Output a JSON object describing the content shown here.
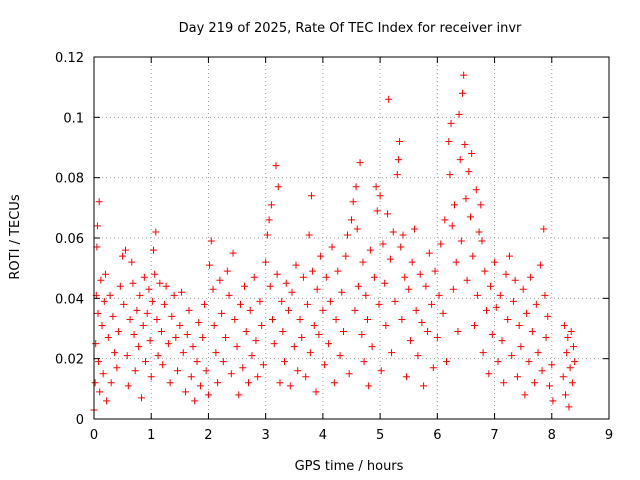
{
  "chart_data": {
    "type": "scatter",
    "title": "Day 219 of 2025, Rate Of TEC Index for receiver invr",
    "xlabel": "GPS time / hours",
    "ylabel": "ROTI / TECUs",
    "xlim": [
      0,
      9
    ],
    "ylim": [
      0,
      0.12
    ],
    "xticks": [
      0,
      1,
      2,
      3,
      4,
      5,
      6,
      7,
      8,
      9
    ],
    "xtick_labels": [
      "0",
      "1",
      "2",
      "3",
      "4",
      "5",
      "6",
      "7",
      "8",
      "9"
    ],
    "yticks": [
      0,
      0.02,
      0.04,
      0.06,
      0.08,
      0.1,
      0.12
    ],
    "ytick_labels": [
      "0",
      "0.02",
      "0.04",
      "0.06",
      "0.08",
      "0.1",
      "0.12"
    ],
    "grid": true,
    "marker": "plus",
    "color": "#ff0000",
    "series": [
      {
        "name": "ROTI",
        "points": [
          [
            0.0,
            0.003
          ],
          [
            0.02,
            0.012
          ],
          [
            0.03,
            0.025
          ],
          [
            0.04,
            0.041
          ],
          [
            0.05,
            0.057
          ],
          [
            0.06,
            0.064
          ],
          [
            0.07,
            0.035
          ],
          [
            0.08,
            0.019
          ],
          [
            0.09,
            0.072
          ],
          [
            0.1,
            0.009
          ],
          [
            0.12,
            0.046
          ],
          [
            0.14,
            0.031
          ],
          [
            0.16,
            0.015
          ],
          [
            0.18,
            0.039
          ],
          [
            0.2,
            0.048
          ],
          [
            0.22,
            0.006
          ],
          [
            0.25,
            0.027
          ],
          [
            0.28,
            0.041
          ],
          [
            0.3,
            0.012
          ],
          [
            0.33,
            0.034
          ],
          [
            0.36,
            0.022
          ],
          [
            0.4,
            0.017
          ],
          [
            0.43,
            0.029
          ],
          [
            0.46,
            0.044
          ],
          [
            0.5,
            0.054
          ],
          [
            0.52,
            0.038
          ],
          [
            0.55,
            0.056
          ],
          [
            0.58,
            0.021
          ],
          [
            0.6,
            0.011
          ],
          [
            0.63,
            0.033
          ],
          [
            0.66,
            0.052
          ],
          [
            0.68,
            0.045
          ],
          [
            0.7,
            0.028
          ],
          [
            0.72,
            0.016
          ],
          [
            0.75,
            0.036
          ],
          [
            0.78,
            0.024
          ],
          [
            0.8,
            0.041
          ],
          [
            0.83,
            0.007
          ],
          [
            0.86,
            0.031
          ],
          [
            0.88,
            0.047
          ],
          [
            0.9,
            0.019
          ],
          [
            0.93,
            0.035
          ],
          [
            0.96,
            0.043
          ],
          [
            0.98,
            0.026
          ],
          [
            1.0,
            0.014
          ],
          [
            1.02,
            0.039
          ],
          [
            1.04,
            0.056
          ],
          [
            1.06,
            0.048
          ],
          [
            1.08,
            0.062
          ],
          [
            1.1,
            0.033
          ],
          [
            1.12,
            0.021
          ],
          [
            1.15,
            0.045
          ],
          [
            1.18,
            0.029
          ],
          [
            1.2,
            0.018
          ],
          [
            1.23,
            0.038
          ],
          [
            1.26,
            0.044
          ],
          [
            1.3,
            0.025
          ],
          [
            1.33,
            0.012
          ],
          [
            1.36,
            0.034
          ],
          [
            1.4,
            0.041
          ],
          [
            1.43,
            0.027
          ],
          [
            1.46,
            0.016
          ],
          [
            1.5,
            0.031
          ],
          [
            1.53,
            0.042
          ],
          [
            1.56,
            0.022
          ],
          [
            1.6,
            0.009
          ],
          [
            1.63,
            0.028
          ],
          [
            1.66,
            0.036
          ],
          [
            1.7,
            0.014
          ],
          [
            1.73,
            0.024
          ],
          [
            1.76,
            0.006
          ],
          [
            1.8,
            0.019
          ],
          [
            1.83,
            0.032
          ],
          [
            1.86,
            0.011
          ],
          [
            1.9,
            0.027
          ],
          [
            1.93,
            0.038
          ],
          [
            1.96,
            0.016
          ],
          [
            2.0,
            0.008
          ],
          [
            2.02,
            0.051
          ],
          [
            2.05,
            0.059
          ],
          [
            2.08,
            0.043
          ],
          [
            2.1,
            0.031
          ],
          [
            2.13,
            0.022
          ],
          [
            2.16,
            0.012
          ],
          [
            2.2,
            0.046
          ],
          [
            2.23,
            0.035
          ],
          [
            2.26,
            0.019
          ],
          [
            2.3,
            0.027
          ],
          [
            2.33,
            0.049
          ],
          [
            2.36,
            0.041
          ],
          [
            2.4,
            0.015
          ],
          [
            2.43,
            0.055
          ],
          [
            2.46,
            0.033
          ],
          [
            2.5,
            0.024
          ],
          [
            2.53,
            0.008
          ],
          [
            2.56,
            0.038
          ],
          [
            2.6,
            0.017
          ],
          [
            2.63,
            0.044
          ],
          [
            2.66,
            0.029
          ],
          [
            2.7,
            0.012
          ],
          [
            2.73,
            0.036
          ],
          [
            2.76,
            0.021
          ],
          [
            2.8,
            0.047
          ],
          [
            2.83,
            0.026
          ],
          [
            2.86,
            0.014
          ],
          [
            2.9,
            0.039
          ],
          [
            2.93,
            0.031
          ],
          [
            2.96,
            0.018
          ],
          [
            3.0,
            0.052
          ],
          [
            3.03,
            0.061
          ],
          [
            3.06,
            0.066
          ],
          [
            3.08,
            0.044
          ],
          [
            3.1,
            0.071
          ],
          [
            3.12,
            0.033
          ],
          [
            3.15,
            0.025
          ],
          [
            3.18,
            0.084
          ],
          [
            3.2,
            0.048
          ],
          [
            3.22,
            0.077
          ],
          [
            3.25,
            0.012
          ],
          [
            3.28,
            0.039
          ],
          [
            3.3,
            0.029
          ],
          [
            3.33,
            0.019
          ],
          [
            3.36,
            0.045
          ],
          [
            3.4,
            0.036
          ],
          [
            3.43,
            0.011
          ],
          [
            3.46,
            0.042
          ],
          [
            3.5,
            0.024
          ],
          [
            3.53,
            0.051
          ],
          [
            3.56,
            0.016
          ],
          [
            3.6,
            0.033
          ],
          [
            3.63,
            0.027
          ],
          [
            3.66,
            0.047
          ],
          [
            3.7,
            0.014
          ],
          [
            3.73,
            0.038
          ],
          [
            3.76,
            0.061
          ],
          [
            3.78,
            0.022
          ],
          [
            3.8,
            0.074
          ],
          [
            3.82,
            0.049
          ],
          [
            3.85,
            0.031
          ],
          [
            3.88,
            0.009
          ],
          [
            3.9,
            0.043
          ],
          [
            3.93,
            0.028
          ],
          [
            3.96,
            0.054
          ],
          [
            4.0,
            0.036
          ],
          [
            4.03,
            0.018
          ],
          [
            4.06,
            0.047
          ],
          [
            4.1,
            0.025
          ],
          [
            4.13,
            0.039
          ],
          [
            4.16,
            0.057
          ],
          [
            4.2,
            0.012
          ],
          [
            4.23,
            0.033
          ],
          [
            4.26,
            0.049
          ],
          [
            4.3,
            0.021
          ],
          [
            4.33,
            0.042
          ],
          [
            4.36,
            0.029
          ],
          [
            4.4,
            0.054
          ],
          [
            4.43,
            0.061
          ],
          [
            4.46,
            0.015
          ],
          [
            4.5,
            0.066
          ],
          [
            4.53,
            0.072
          ],
          [
            4.56,
            0.036
          ],
          [
            4.58,
            0.077
          ],
          [
            4.6,
            0.063
          ],
          [
            4.62,
            0.044
          ],
          [
            4.65,
            0.085
          ],
          [
            4.68,
            0.028
          ],
          [
            4.7,
            0.052
          ],
          [
            4.72,
            0.019
          ],
          [
            4.75,
            0.041
          ],
          [
            4.78,
            0.033
          ],
          [
            4.8,
            0.011
          ],
          [
            4.83,
            0.056
          ],
          [
            4.86,
            0.024
          ],
          [
            4.9,
            0.047
          ],
          [
            4.93,
            0.077
          ],
          [
            4.95,
            0.069
          ],
          [
            4.98,
            0.038
          ],
          [
            5.0,
            0.074
          ],
          [
            5.02,
            0.016
          ],
          [
            5.05,
            0.058
          ],
          [
            5.08,
            0.045
          ],
          [
            5.1,
            0.031
          ],
          [
            5.13,
            0.068
          ],
          [
            5.15,
            0.106
          ],
          [
            5.18,
            0.053
          ],
          [
            5.2,
            0.022
          ],
          [
            5.23,
            0.062
          ],
          [
            5.26,
            0.039
          ],
          [
            5.3,
            0.081
          ],
          [
            5.32,
            0.086
          ],
          [
            5.34,
            0.092
          ],
          [
            5.36,
            0.057
          ],
          [
            5.38,
            0.033
          ],
          [
            5.4,
            0.061
          ],
          [
            5.43,
            0.047
          ],
          [
            5.46,
            0.014
          ],
          [
            5.5,
            0.043
          ],
          [
            5.53,
            0.026
          ],
          [
            5.56,
            0.052
          ],
          [
            5.6,
            0.063
          ],
          [
            5.63,
            0.036
          ],
          [
            5.66,
            0.021
          ],
          [
            5.7,
            0.048
          ],
          [
            5.73,
            0.032
          ],
          [
            5.76,
            0.011
          ],
          [
            5.8,
            0.044
          ],
          [
            5.83,
            0.029
          ],
          [
            5.86,
            0.055
          ],
          [
            5.9,
            0.038
          ],
          [
            5.93,
            0.017
          ],
          [
            5.96,
            0.049
          ],
          [
            6.0,
            0.027
          ],
          [
            6.03,
            0.041
          ],
          [
            6.06,
            0.058
          ],
          [
            6.1,
            0.035
          ],
          [
            6.13,
            0.066
          ],
          [
            6.16,
            0.019
          ],
          [
            6.2,
            0.092
          ],
          [
            6.22,
            0.081
          ],
          [
            6.24,
            0.098
          ],
          [
            6.26,
            0.064
          ],
          [
            6.28,
            0.043
          ],
          [
            6.3,
            0.071
          ],
          [
            6.33,
            0.052
          ],
          [
            6.36,
            0.029
          ],
          [
            6.38,
            0.101
          ],
          [
            6.4,
            0.086
          ],
          [
            6.42,
            0.059
          ],
          [
            6.44,
            0.108
          ],
          [
            6.46,
            0.114
          ],
          [
            6.48,
            0.091
          ],
          [
            6.5,
            0.073
          ],
          [
            6.52,
            0.046
          ],
          [
            6.55,
            0.082
          ],
          [
            6.58,
            0.067
          ],
          [
            6.6,
            0.088
          ],
          [
            6.62,
            0.054
          ],
          [
            6.65,
            0.031
          ],
          [
            6.68,
            0.076
          ],
          [
            6.7,
            0.041
          ],
          [
            6.73,
            0.062
          ],
          [
            6.76,
            0.071
          ],
          [
            6.78,
            0.059
          ],
          [
            6.8,
            0.022
          ],
          [
            6.83,
            0.049
          ],
          [
            6.86,
            0.036
          ],
          [
            6.9,
            0.015
          ],
          [
            6.93,
            0.044
          ],
          [
            6.96,
            0.028
          ],
          [
            7.0,
            0.052
          ],
          [
            7.03,
            0.037
          ],
          [
            7.06,
            0.019
          ],
          [
            7.1,
            0.041
          ],
          [
            7.13,
            0.026
          ],
          [
            7.16,
            0.012
          ],
          [
            7.2,
            0.048
          ],
          [
            7.23,
            0.033
          ],
          [
            7.26,
            0.054
          ],
          [
            7.3,
            0.021
          ],
          [
            7.33,
            0.039
          ],
          [
            7.36,
            0.046
          ],
          [
            7.4,
            0.014
          ],
          [
            7.43,
            0.031
          ],
          [
            7.46,
            0.024
          ],
          [
            7.5,
            0.043
          ],
          [
            7.53,
            0.008
          ],
          [
            7.56,
            0.035
          ],
          [
            7.6,
            0.019
          ],
          [
            7.63,
            0.047
          ],
          [
            7.66,
            0.029
          ],
          [
            7.7,
            0.012
          ],
          [
            7.73,
            0.038
          ],
          [
            7.76,
            0.022
          ],
          [
            7.8,
            0.051
          ],
          [
            7.83,
            0.016
          ],
          [
            7.86,
            0.063
          ],
          [
            7.88,
            0.041
          ],
          [
            7.9,
            0.027
          ],
          [
            7.93,
            0.034
          ],
          [
            7.96,
            0.011
          ],
          [
            8.0,
            0.018
          ],
          [
            8.02,
            0.006
          ],
          [
            8.2,
            0.014
          ],
          [
            8.22,
            0.031
          ],
          [
            8.24,
            0.008
          ],
          [
            8.26,
            0.022
          ],
          [
            8.28,
            0.027
          ],
          [
            8.3,
            0.004
          ],
          [
            8.32,
            0.017
          ],
          [
            8.34,
            0.029
          ],
          [
            8.36,
            0.012
          ],
          [
            8.38,
            0.024
          ],
          [
            8.4,
            0.019
          ]
        ]
      }
    ]
  }
}
